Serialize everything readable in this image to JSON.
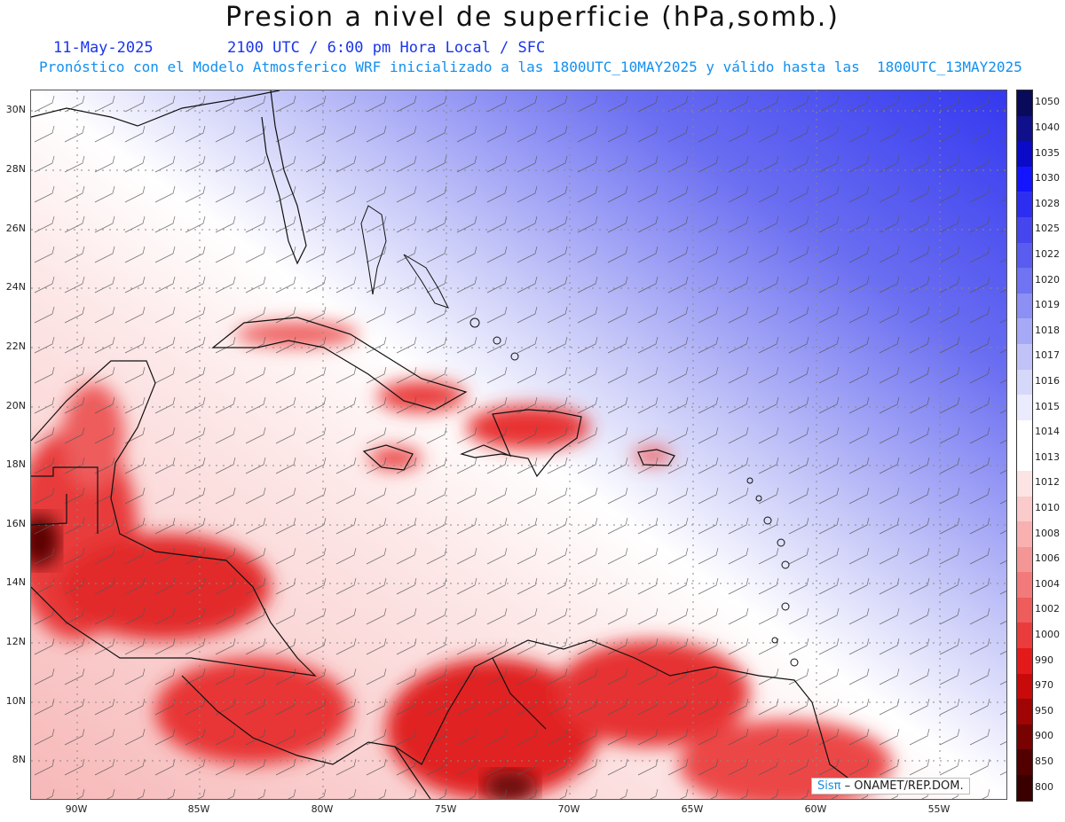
{
  "title": "Presion a nivel de superficie (hPa,somb.)",
  "date": "11-May-2025",
  "time_info": "2100 UTC / 6:00 pm Hora Local / SFC",
  "subtitle": "Pronóstico con el Modelo Atmosferico WRF inicializado a las 1800UTC_10MAY2025 y válido hasta las  1800UTC_13MAY2025",
  "lat_labels": [
    "30N",
    "28N",
    "26N",
    "24N",
    "22N",
    "20N",
    "18N",
    "16N",
    "14N",
    "12N",
    "10N",
    "8N"
  ],
  "lon_labels": [
    "90W",
    "85W",
    "80W",
    "75W",
    "70W",
    "65W",
    "60W",
    "55W"
  ],
  "colorbar": {
    "labels": [
      "1050",
      "1040",
      "1035",
      "1030",
      "1028",
      "1025",
      "1022",
      "1020",
      "1019",
      "1018",
      "1017",
      "1016",
      "1015",
      "1014",
      "1013",
      "1012",
      "1010",
      "1008",
      "1006",
      "1004",
      "1002",
      "1000",
      "990",
      "970",
      "950",
      "900",
      "850",
      "800"
    ],
    "colors": [
      "#0a0a5a",
      "#10108c",
      "#0a0ac8",
      "#1414ff",
      "#2e2ef2",
      "#4646ef",
      "#5a5cf0",
      "#7073f2",
      "#8c8ff4",
      "#a6a9f6",
      "#c0c2f8",
      "#d6d8fa",
      "#eaebfc",
      "#ffffff",
      "#ffffff",
      "#fde4e4",
      "#fbcaca",
      "#f8b0b0",
      "#f59696",
      "#f27a7a",
      "#ee5c5c",
      "#ea3c3c",
      "#e41a1a",
      "#c80a0a",
      "#a00404",
      "#780202",
      "#520000",
      "#3a0000"
    ]
  },
  "branding": {
    "sis": "Sisπ",
    "org": " – ONAMET/REP.DOM."
  }
}
